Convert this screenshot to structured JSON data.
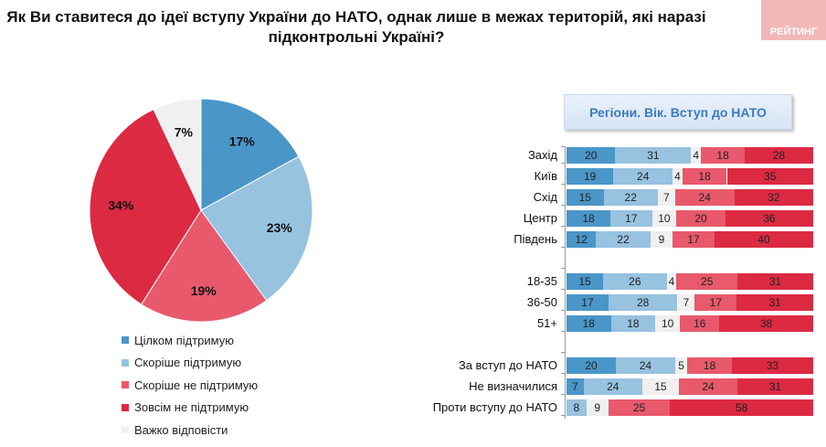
{
  "title": "Як Ви ставитеся до ідеї вступу України до НАТО, однак лише в межах територій, які наразі підконтрольні Україні?",
  "title_line1": "Як Ви ставитеся до ідеї вступу України до НАТО, однак лише в межах територій, які наразі",
  "title_line2": "підконтрольні Україні?",
  "logo": "РЕЙТИНГ",
  "panel_header": "Регіони. Вік. Вступ до НАТО",
  "colors": [
    "#4a96c8",
    "#97c2e0",
    "#f0f0f0",
    "#e8596b",
    "#dc2a43"
  ],
  "chart_data": [
    {
      "type": "pie",
      "categories": [
        "Цілком підтримую",
        "Скоріше підтримую",
        "Скоріше не підтримую",
        "Зовсім не підтримую",
        "Важко відповісти"
      ],
      "values": [
        17,
        23,
        19,
        34,
        7
      ],
      "data_labels": [
        "17%",
        "23%",
        "19%",
        "34%",
        "7%"
      ],
      "legend": "bottom-left"
    },
    {
      "type": "bar",
      "orientation": "horizontal",
      "stacked": true,
      "series_order": [
        "Цілком підтримую",
        "Скоріше підтримую",
        "Важко відповісти",
        "Скоріше не підтримую",
        "Зовсім не підтримую"
      ],
      "categories": [
        "Захід",
        "Київ",
        "Схід",
        "Центр",
        "Південь",
        "18-35",
        "36-50",
        "51+",
        "За вступ до НАТО",
        "Не визначилися",
        "Проти вступу до НАТО"
      ],
      "values": [
        [
          20,
          31,
          4,
          18,
          28
        ],
        [
          19,
          24,
          4,
          18,
          35
        ],
        [
          15,
          22,
          7,
          24,
          32
        ],
        [
          18,
          17,
          10,
          20,
          36
        ],
        [
          12,
          22,
          9,
          17,
          40
        ],
        [
          15,
          26,
          4,
          25,
          31
        ],
        [
          17,
          28,
          7,
          17,
          31
        ],
        [
          18,
          18,
          10,
          16,
          38
        ],
        [
          20,
          24,
          5,
          18,
          33
        ],
        [
          7,
          24,
          15,
          24,
          31
        ],
        [
          0,
          8,
          9,
          25,
          58
        ]
      ],
      "xlim": [
        0,
        100
      ]
    }
  ]
}
